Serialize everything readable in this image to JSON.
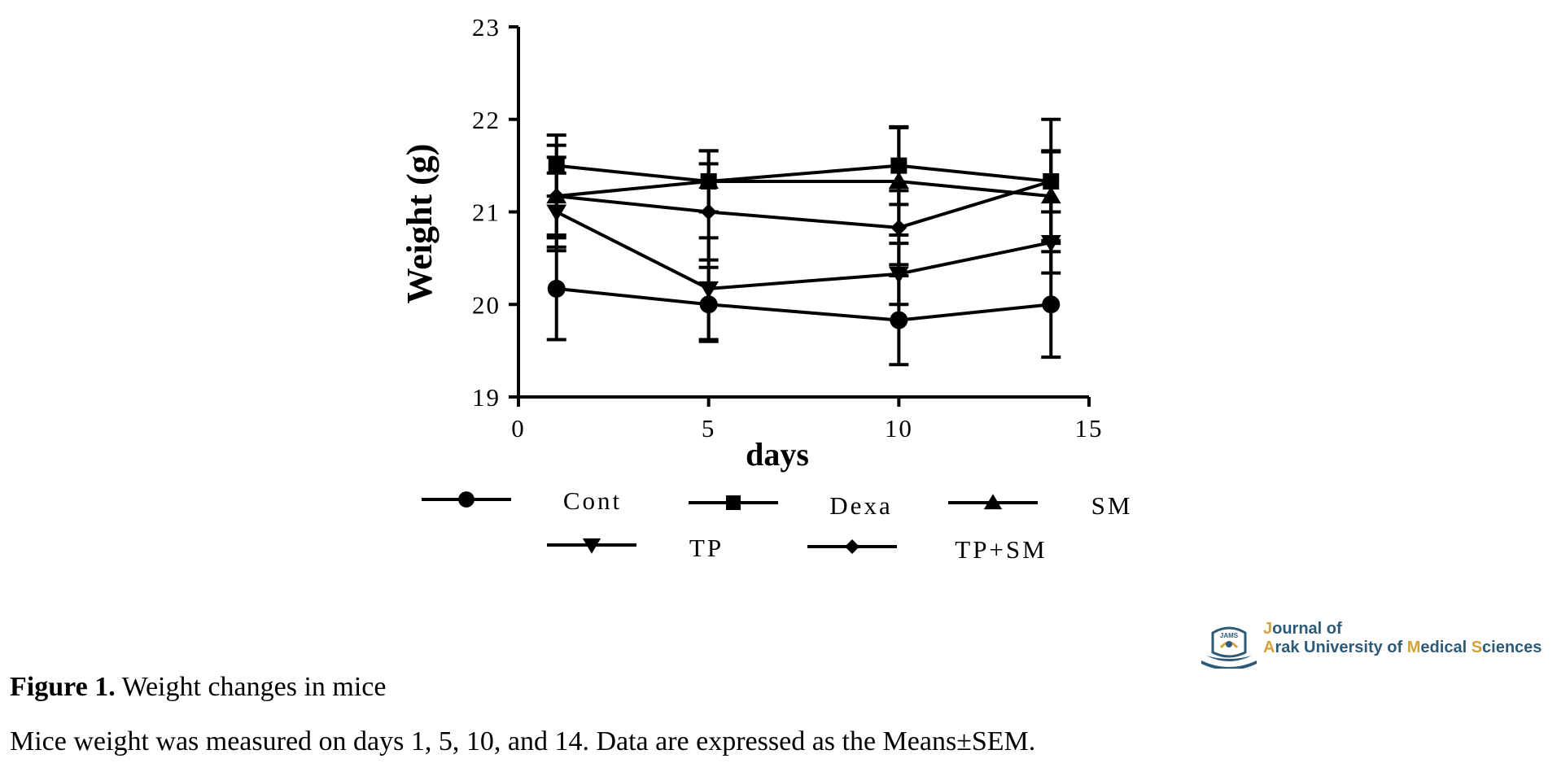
{
  "chart_data": {
    "type": "line",
    "xlabel": "days",
    "ylabel": "Weight (g)",
    "xlim": [
      0,
      15
    ],
    "ylim": [
      19,
      23
    ],
    "xticks": [
      0,
      5,
      10,
      15
    ],
    "yticks": [
      19,
      20,
      21,
      22,
      23
    ],
    "x": [
      1,
      5,
      10,
      14
    ],
    "grid": false,
    "legend_position": "bottom",
    "error_bars": "SEM",
    "series": [
      {
        "name": "Cont",
        "marker": "circle",
        "values": [
          20.17,
          20.0,
          19.83,
          20.0
        ],
        "errors": [
          0.55,
          0.4,
          0.48,
          0.57
        ]
      },
      {
        "name": "Dexa",
        "marker": "square",
        "values": [
          21.5,
          21.33,
          21.5,
          21.33
        ],
        "errors": [
          0.33,
          0.33,
          0.42,
          0.67
        ]
      },
      {
        "name": "SM",
        "marker": "triangle-up",
        "values": [
          21.17,
          21.33,
          21.33,
          21.17
        ],
        "errors": [
          0.55,
          0.33,
          0.58,
          0.48
        ]
      },
      {
        "name": "TP",
        "marker": "triangle-down",
        "values": [
          21.0,
          20.17,
          20.33,
          20.67
        ],
        "errors": [
          0.42,
          0.55,
          0.33,
          0.33
        ]
      },
      {
        "name": "TP+SM",
        "marker": "diamond",
        "values": [
          21.17,
          21.0,
          20.83,
          21.33
        ],
        "errors": [
          0.42,
          0.52,
          0.4,
          0.33
        ]
      }
    ]
  },
  "caption": {
    "label": "Figure 1.",
    "title": " Weight changes in mice",
    "note": "Mice weight was measured on days 1, 5, 10, and 14. Data are expressed as the Means±SEM."
  },
  "logo": {
    "line1_prefix": "J",
    "line1_rest": "ournal of",
    "line2_a": "A",
    "line2_b": "rak University of ",
    "line2_c": "M",
    "line2_d": "edical ",
    "line2_e": "S",
    "line2_f": "ciences",
    "emblem_text": "JAMS"
  },
  "colors": {
    "ink": "#000000",
    "logo_blue": "#2e5a77",
    "logo_gold": "#d5a23a"
  }
}
